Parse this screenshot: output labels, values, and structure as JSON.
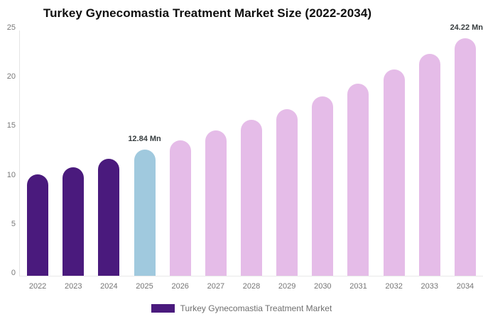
{
  "chart_data": {
    "type": "bar",
    "title": "Turkey Gynecomastia Treatment Market Size (2022-2034)",
    "unit": "Mn",
    "categories": [
      "2022",
      "2023",
      "2024",
      "2025",
      "2026",
      "2027",
      "2028",
      "2029",
      "2030",
      "2031",
      "2032",
      "2033",
      "2034"
    ],
    "values": [
      10.3,
      11.05,
      11.95,
      12.84,
      13.8,
      14.8,
      15.9,
      17.0,
      18.25,
      19.6,
      21.05,
      22.6,
      24.22
    ],
    "value_labels": [
      {
        "category": "2025",
        "text": "12.84 Mn"
      },
      {
        "category": "2034",
        "text": "24.22 Mn"
      }
    ],
    "color_roles": [
      "historical",
      "historical",
      "historical",
      "current",
      "forecast",
      "forecast",
      "forecast",
      "forecast",
      "forecast",
      "forecast",
      "forecast",
      "forecast",
      "forecast"
    ],
    "colors": {
      "historical": "#4A1A7D",
      "current": "#A0C9DE",
      "forecast": "#E5BCE8"
    },
    "xlabel": "",
    "ylabel": "",
    "ylim": [
      0,
      25
    ],
    "yticks": [
      0,
      5,
      10,
      15,
      20,
      25
    ],
    "grid": false,
    "legend_position": "bottom"
  },
  "legend": {
    "label": "Turkey Gynecomastia Treatment Market",
    "swatch_color": "#4A1A7D"
  },
  "style": {
    "axis_line_color": "#e4e4e4",
    "tick_label_color": "#787878",
    "data_label_color": "#373d3f",
    "title_color": "#0f0f0f"
  }
}
